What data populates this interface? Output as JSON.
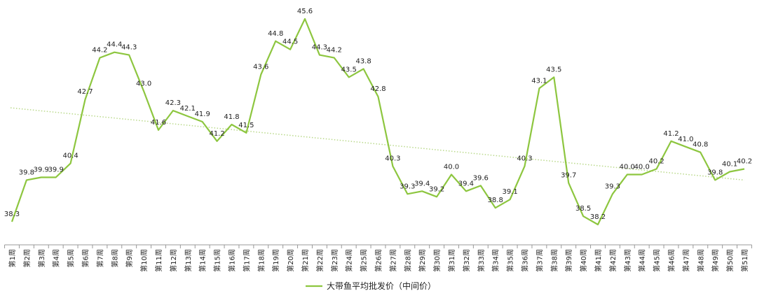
{
  "chart_data": {
    "type": "line",
    "title": "",
    "xlabel": "",
    "ylabel": "",
    "ylim": [
      38.0,
      45.9
    ],
    "grid": false,
    "legend_position": "bottom",
    "categories": [
      "第1周",
      "第2周",
      "第3周",
      "第4周",
      "第5周",
      "第6周",
      "第7周",
      "第8周",
      "第9周",
      "第10周",
      "第11周",
      "第12周",
      "第13周",
      "第14周",
      "第15周",
      "第16周",
      "第17周",
      "第18周",
      "第19周",
      "第20周",
      "第21周",
      "第22周",
      "第23周",
      "第24周",
      "第25周",
      "第26周",
      "第27周",
      "第28周",
      "第29周",
      "第30周",
      "第31周",
      "第32周",
      "第33周",
      "第34周",
      "第35周",
      "第36周",
      "第37周",
      "第38周",
      "第39周",
      "第40周",
      "第41周",
      "第42周",
      "第43周",
      "第44周",
      "第45周",
      "第46周",
      "第47周",
      "第48周",
      "第49周",
      "第50周",
      "第51周"
    ],
    "series": [
      {
        "name": "大带鱼平均批发价（中间价）",
        "color": "#8dc63f",
        "values": [
          38.3,
          39.8,
          39.9,
          39.9,
          40.4,
          42.7,
          44.2,
          44.4,
          44.3,
          43.0,
          41.6,
          42.3,
          42.1,
          41.9,
          41.2,
          41.8,
          41.5,
          43.6,
          44.8,
          44.5,
          45.6,
          44.3,
          44.2,
          43.5,
          43.8,
          42.8,
          40.3,
          39.3,
          39.4,
          39.2,
          40.0,
          39.4,
          39.6,
          38.8,
          39.1,
          40.3,
          43.1,
          43.5,
          39.7,
          38.5,
          38.2,
          39.3,
          40.0,
          40.0,
          40.2,
          41.2,
          41.0,
          40.8,
          39.8,
          40.1,
          40.2
        ],
        "labels": [
          "38.3",
          "39.8",
          "39.9",
          "39.9",
          "40.4",
          "42.7",
          "44.2",
          "44.4",
          "44.3",
          "43.0",
          "41.6",
          "42.3",
          "42.1",
          "41.9",
          "41.2",
          "41.8",
          "41.5",
          "43.6",
          "44.8",
          "44.5",
          "45.6",
          "44.3",
          "44.2",
          "43.5",
          "43.8",
          "42.8",
          "40.3",
          "39.3",
          "39.4",
          "39.2",
          "40.0",
          "39.4",
          "39.6",
          "38.8",
          "39.1",
          "40.3",
          "43.1",
          "43.5",
          "39.7",
          "38.5",
          "38.2",
          "39.3",
          "40.0",
          "40.0",
          "40.2",
          "41.2",
          "41.0",
          "40.8",
          "39.8",
          "40.1",
          "40.2"
        ]
      }
    ],
    "trendline": {
      "style": "dotted",
      "color": "#b9d98a",
      "start_value": 42.4,
      "end_value": 39.8
    }
  }
}
